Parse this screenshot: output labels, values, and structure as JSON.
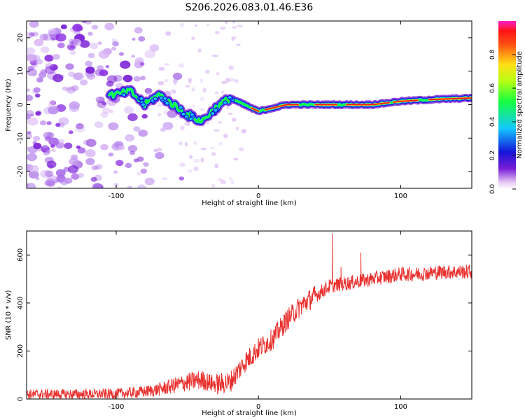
{
  "title": "S206.2026.083.01.46.E36",
  "chart_data": [
    {
      "type": "heatmap",
      "name": "spectrogram",
      "xlabel": "Height of straight line (km)",
      "ylabel": "Frequency (Hz)",
      "xlim": [
        -163,
        150
      ],
      "ylim": [
        -25,
        25
      ],
      "xticks": [
        -100,
        0,
        100
      ],
      "yticks": [
        -20,
        -10,
        0,
        10,
        20
      ],
      "colorbar": {
        "label": "Normalized spectral amplitude",
        "range": [
          0,
          1
        ],
        "ticks": [
          0.0,
          0.2,
          0.4,
          0.6,
          0.8
        ],
        "tick_labels": [
          "0.0",
          "0.2",
          "0.4",
          "0.6",
          "0.8"
        ]
      },
      "ridge": {
        "x": [
          -100,
          -90,
          -80,
          -70,
          -60,
          -50,
          -40,
          -30,
          -20,
          0,
          20,
          40,
          60,
          80,
          100,
          120,
          150
        ],
        "y": [
          3,
          4,
          0,
          3,
          0,
          -3,
          -5,
          -1,
          2,
          -2,
          0,
          0,
          0,
          0,
          1,
          1.5,
          2
        ]
      }
    },
    {
      "type": "line",
      "name": "snr",
      "xlabel": "Height of straight line (km)",
      "ylabel": "SNR (10 * v/v)",
      "xlim": [
        -163,
        150
      ],
      "ylim": [
        0,
        700
      ],
      "xticks": [
        -100,
        0,
        100
      ],
      "yticks": [
        0,
        200,
        400,
        600
      ],
      "color": "#e8312e",
      "series": [
        {
          "name": "SNR",
          "x": [
            -163,
            -140,
            -120,
            -100,
            -80,
            -70,
            -60,
            -50,
            -40,
            -30,
            -20,
            -10,
            0,
            10,
            20,
            30,
            40,
            50,
            60,
            70,
            80,
            90,
            100,
            110,
            120,
            130,
            140,
            150
          ],
          "y": [
            20,
            20,
            20,
            22,
            30,
            40,
            55,
            70,
            80,
            60,
            70,
            150,
            210,
            250,
            330,
            390,
            430,
            470,
            480,
            490,
            500,
            510,
            520,
            520,
            525,
            530,
            530,
            530
          ]
        }
      ],
      "annotations": [
        {
          "x": 52,
          "y": 690
        },
        {
          "x": 58,
          "y": 550
        },
        {
          "x": 72,
          "y": 610
        }
      ]
    }
  ]
}
